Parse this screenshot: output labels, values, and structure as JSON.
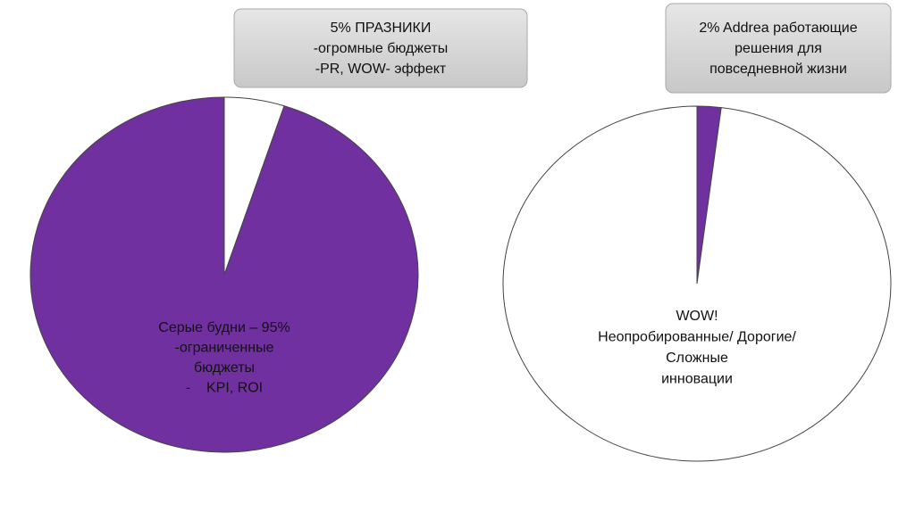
{
  "chart_data": [
    {
      "type": "pie",
      "values": [
        5,
        95
      ],
      "colors": [
        "#ffffff",
        "#7030a0"
      ],
      "callout": [
        "5% ПРАЗНИКИ",
        "-огромные бюджеты",
        "-PR, WOW- эффект"
      ],
      "annotation": [
        "Серые будни – 95%",
        "-ограниченные",
        "бюджеты",
        "-    KPI, ROI"
      ]
    },
    {
      "type": "pie",
      "values": [
        2,
        98
      ],
      "colors": [
        "#7030a0",
        "#ffffff"
      ],
      "callout": [
        "2% Addrea работающие",
        "решения для",
        "повседневной жизни"
      ],
      "annotation": [
        "WOW!",
        "Неопробированные/ Дорогие/",
        "Сложные",
        "инновации"
      ]
    }
  ]
}
